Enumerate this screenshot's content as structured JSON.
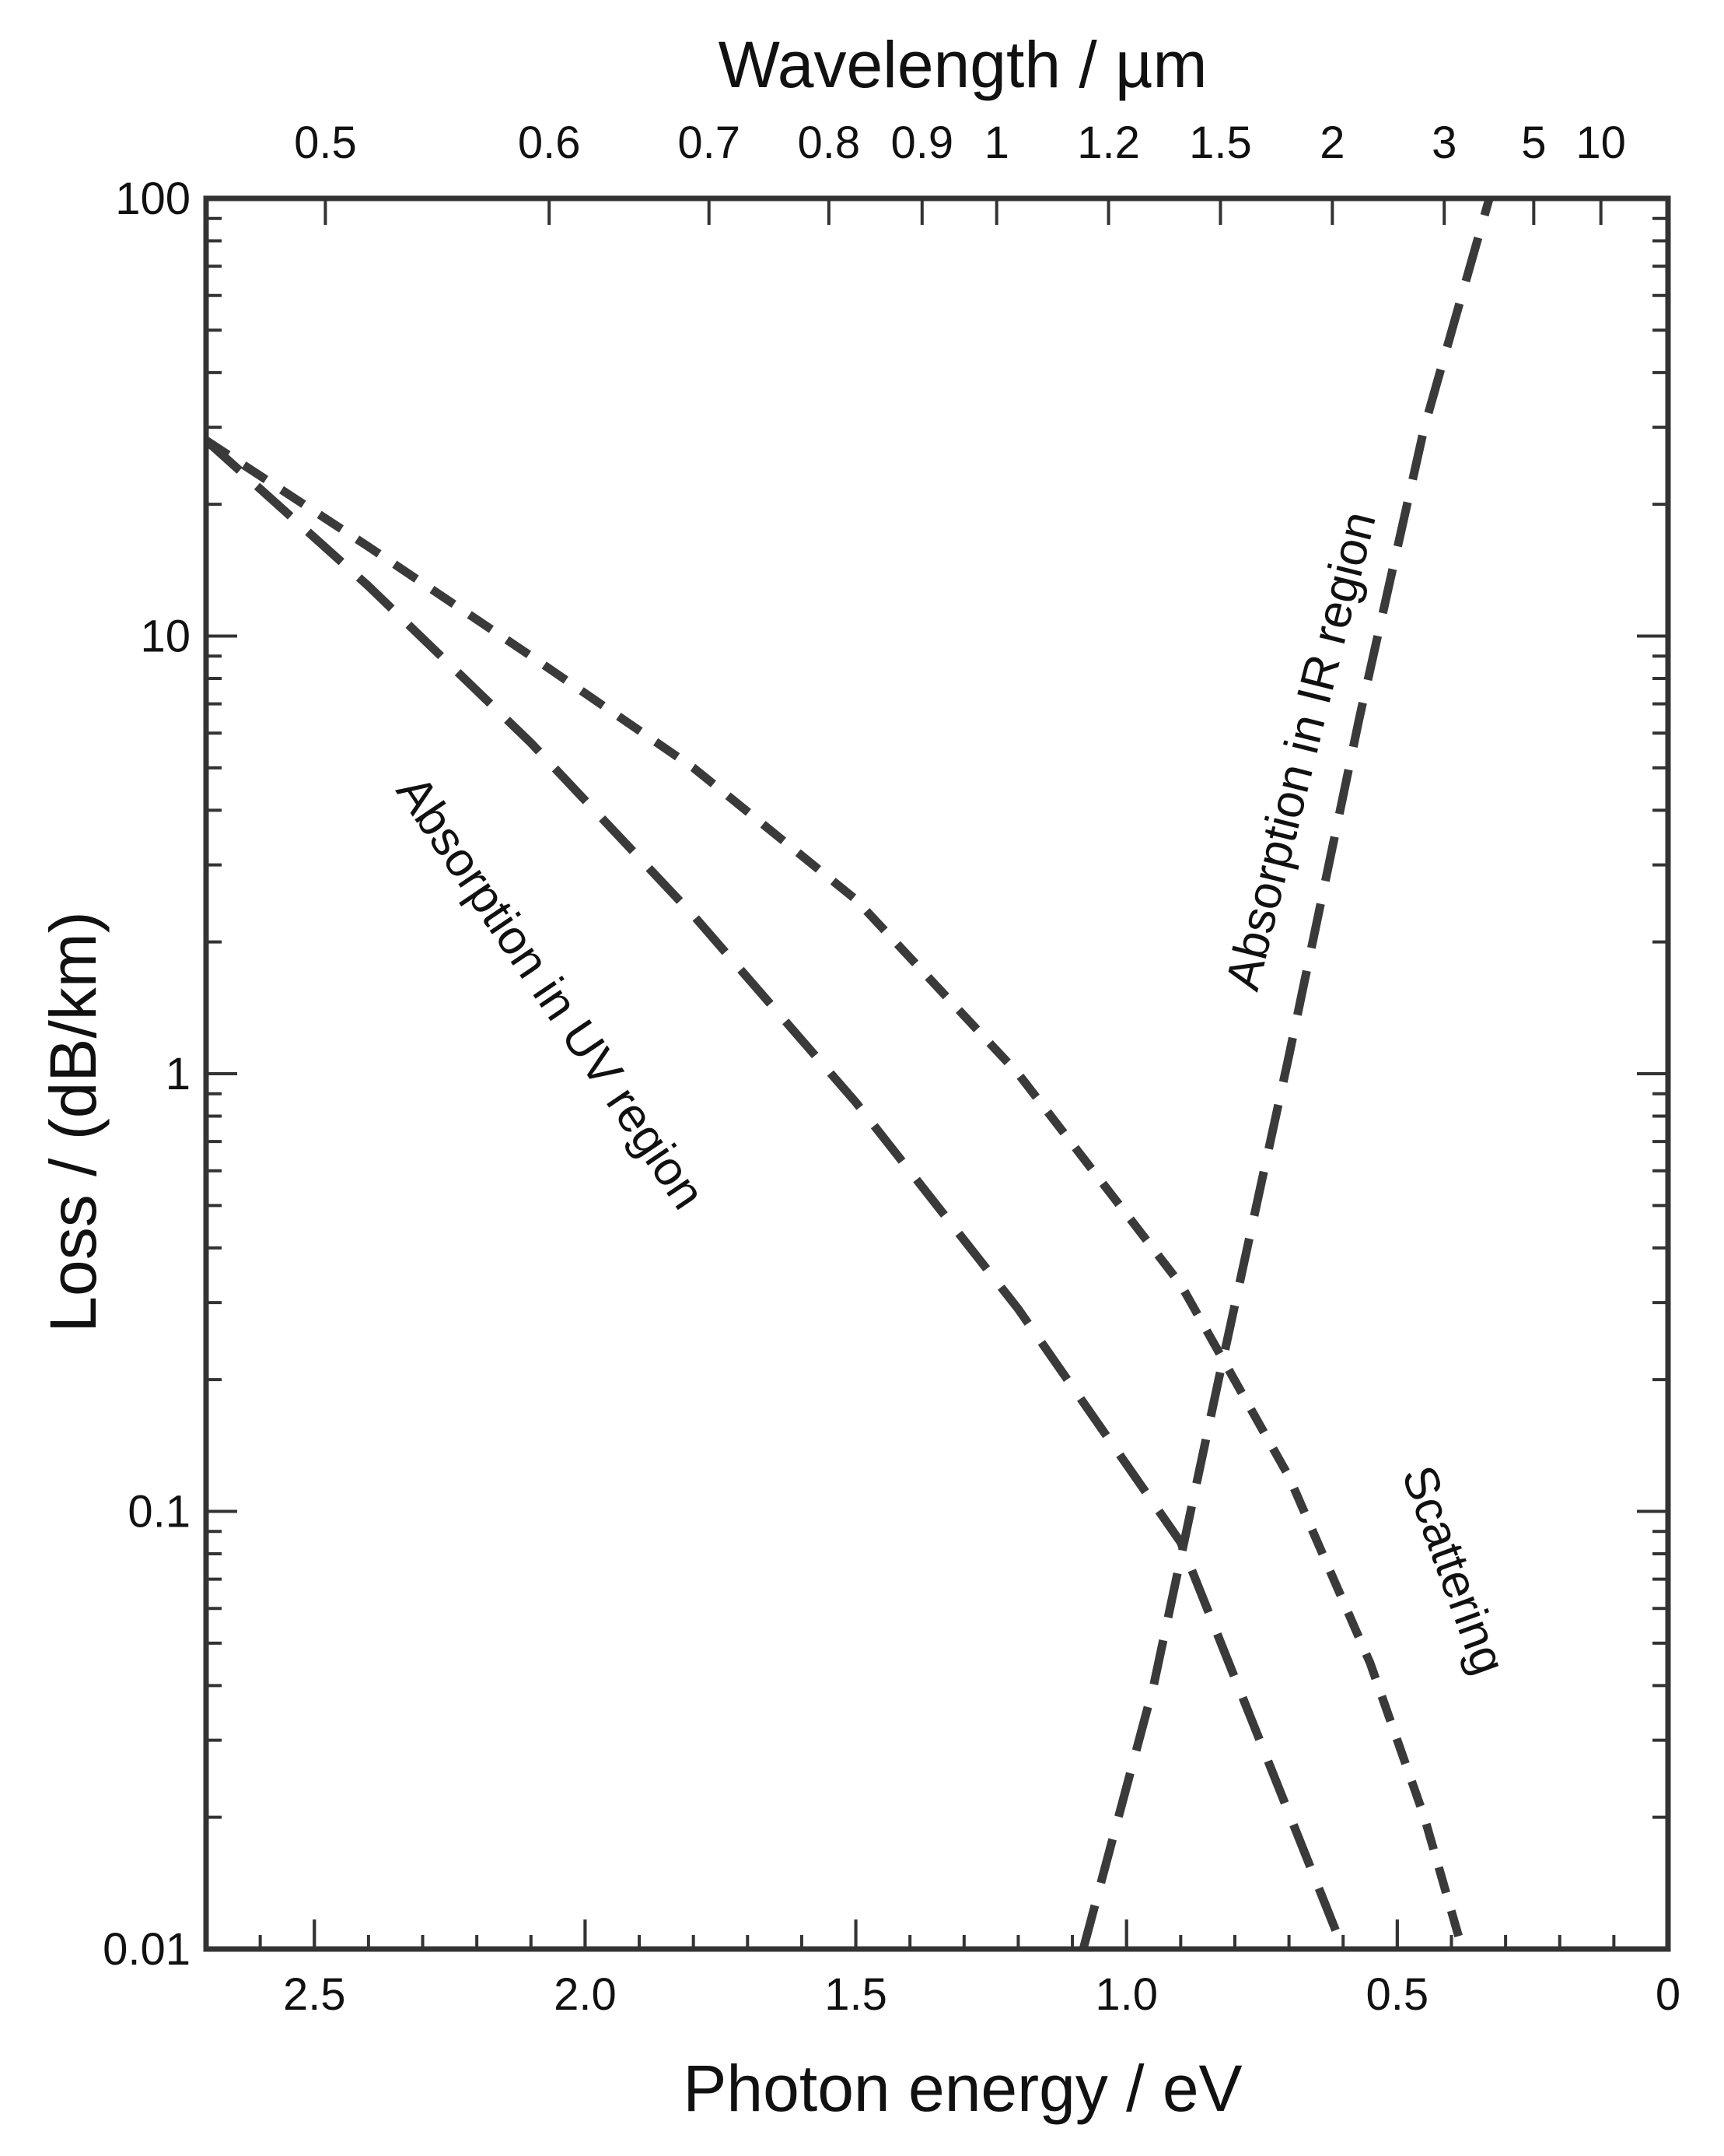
{
  "chart_data": {
    "type": "line",
    "title": "",
    "xlabel": "Photon energy / eV",
    "x2label": "Wavelength / µm",
    "ylabel": "Loss / (dB/km)",
    "xlim": [
      2.7,
      0
    ],
    "ylim": [
      0.01,
      100
    ],
    "yscale": "log",
    "grid": false,
    "x_ticks": [
      2.5,
      2.0,
      1.5,
      1.0,
      0.5,
      0
    ],
    "x_tick_labels": [
      "2.5",
      "2.0",
      "1.5",
      "1.0",
      "0.5",
      "0"
    ],
    "x2_ticks_um": [
      0.5,
      0.6,
      0.7,
      0.8,
      0.9,
      1,
      1.2,
      1.5,
      2,
      3,
      5,
      10
    ],
    "x2_tick_labels": [
      "0.5",
      "0.6",
      "0.7",
      "0.8",
      "0.9",
      "1",
      "1.2",
      "1.5",
      "2",
      "3",
      "5",
      "10"
    ],
    "y_ticks": [
      0.01,
      0.1,
      1,
      10,
      100
    ],
    "y_tick_labels": [
      "0.01",
      "0.1",
      "1",
      "10",
      "100"
    ],
    "series": [
      {
        "name": "Absorption in UV region",
        "style": "long-dash",
        "color": "#3a3a3a",
        "x": [
          2.7,
          2.4,
          2.1,
          1.8,
          1.5,
          1.2,
          0.9,
          0.6
        ],
        "y": [
          28,
          13,
          5.7,
          2.3,
          0.86,
          0.29,
          0.085,
          0.01
        ]
      },
      {
        "name": "Scattering",
        "style": "short-dash",
        "color": "#3a3a3a",
        "x": [
          2.7,
          2.4,
          2.1,
          1.8,
          1.5,
          1.2,
          0.9,
          0.7,
          0.55,
          0.45,
          0.38
        ],
        "y": [
          28,
          16,
          9,
          5,
          2.5,
          1.0,
          0.33,
          0.12,
          0.045,
          0.02,
          0.01
        ]
      },
      {
        "name": "Absorption in IR region",
        "style": "long-dash",
        "color": "#3a3a3a",
        "x": [
          1.08,
          0.95,
          0.83,
          0.7,
          0.57,
          0.45,
          0.33
        ],
        "y": [
          0.01,
          0.04,
          0.2,
          1.1,
          6.5,
          30,
          100
        ]
      }
    ]
  }
}
